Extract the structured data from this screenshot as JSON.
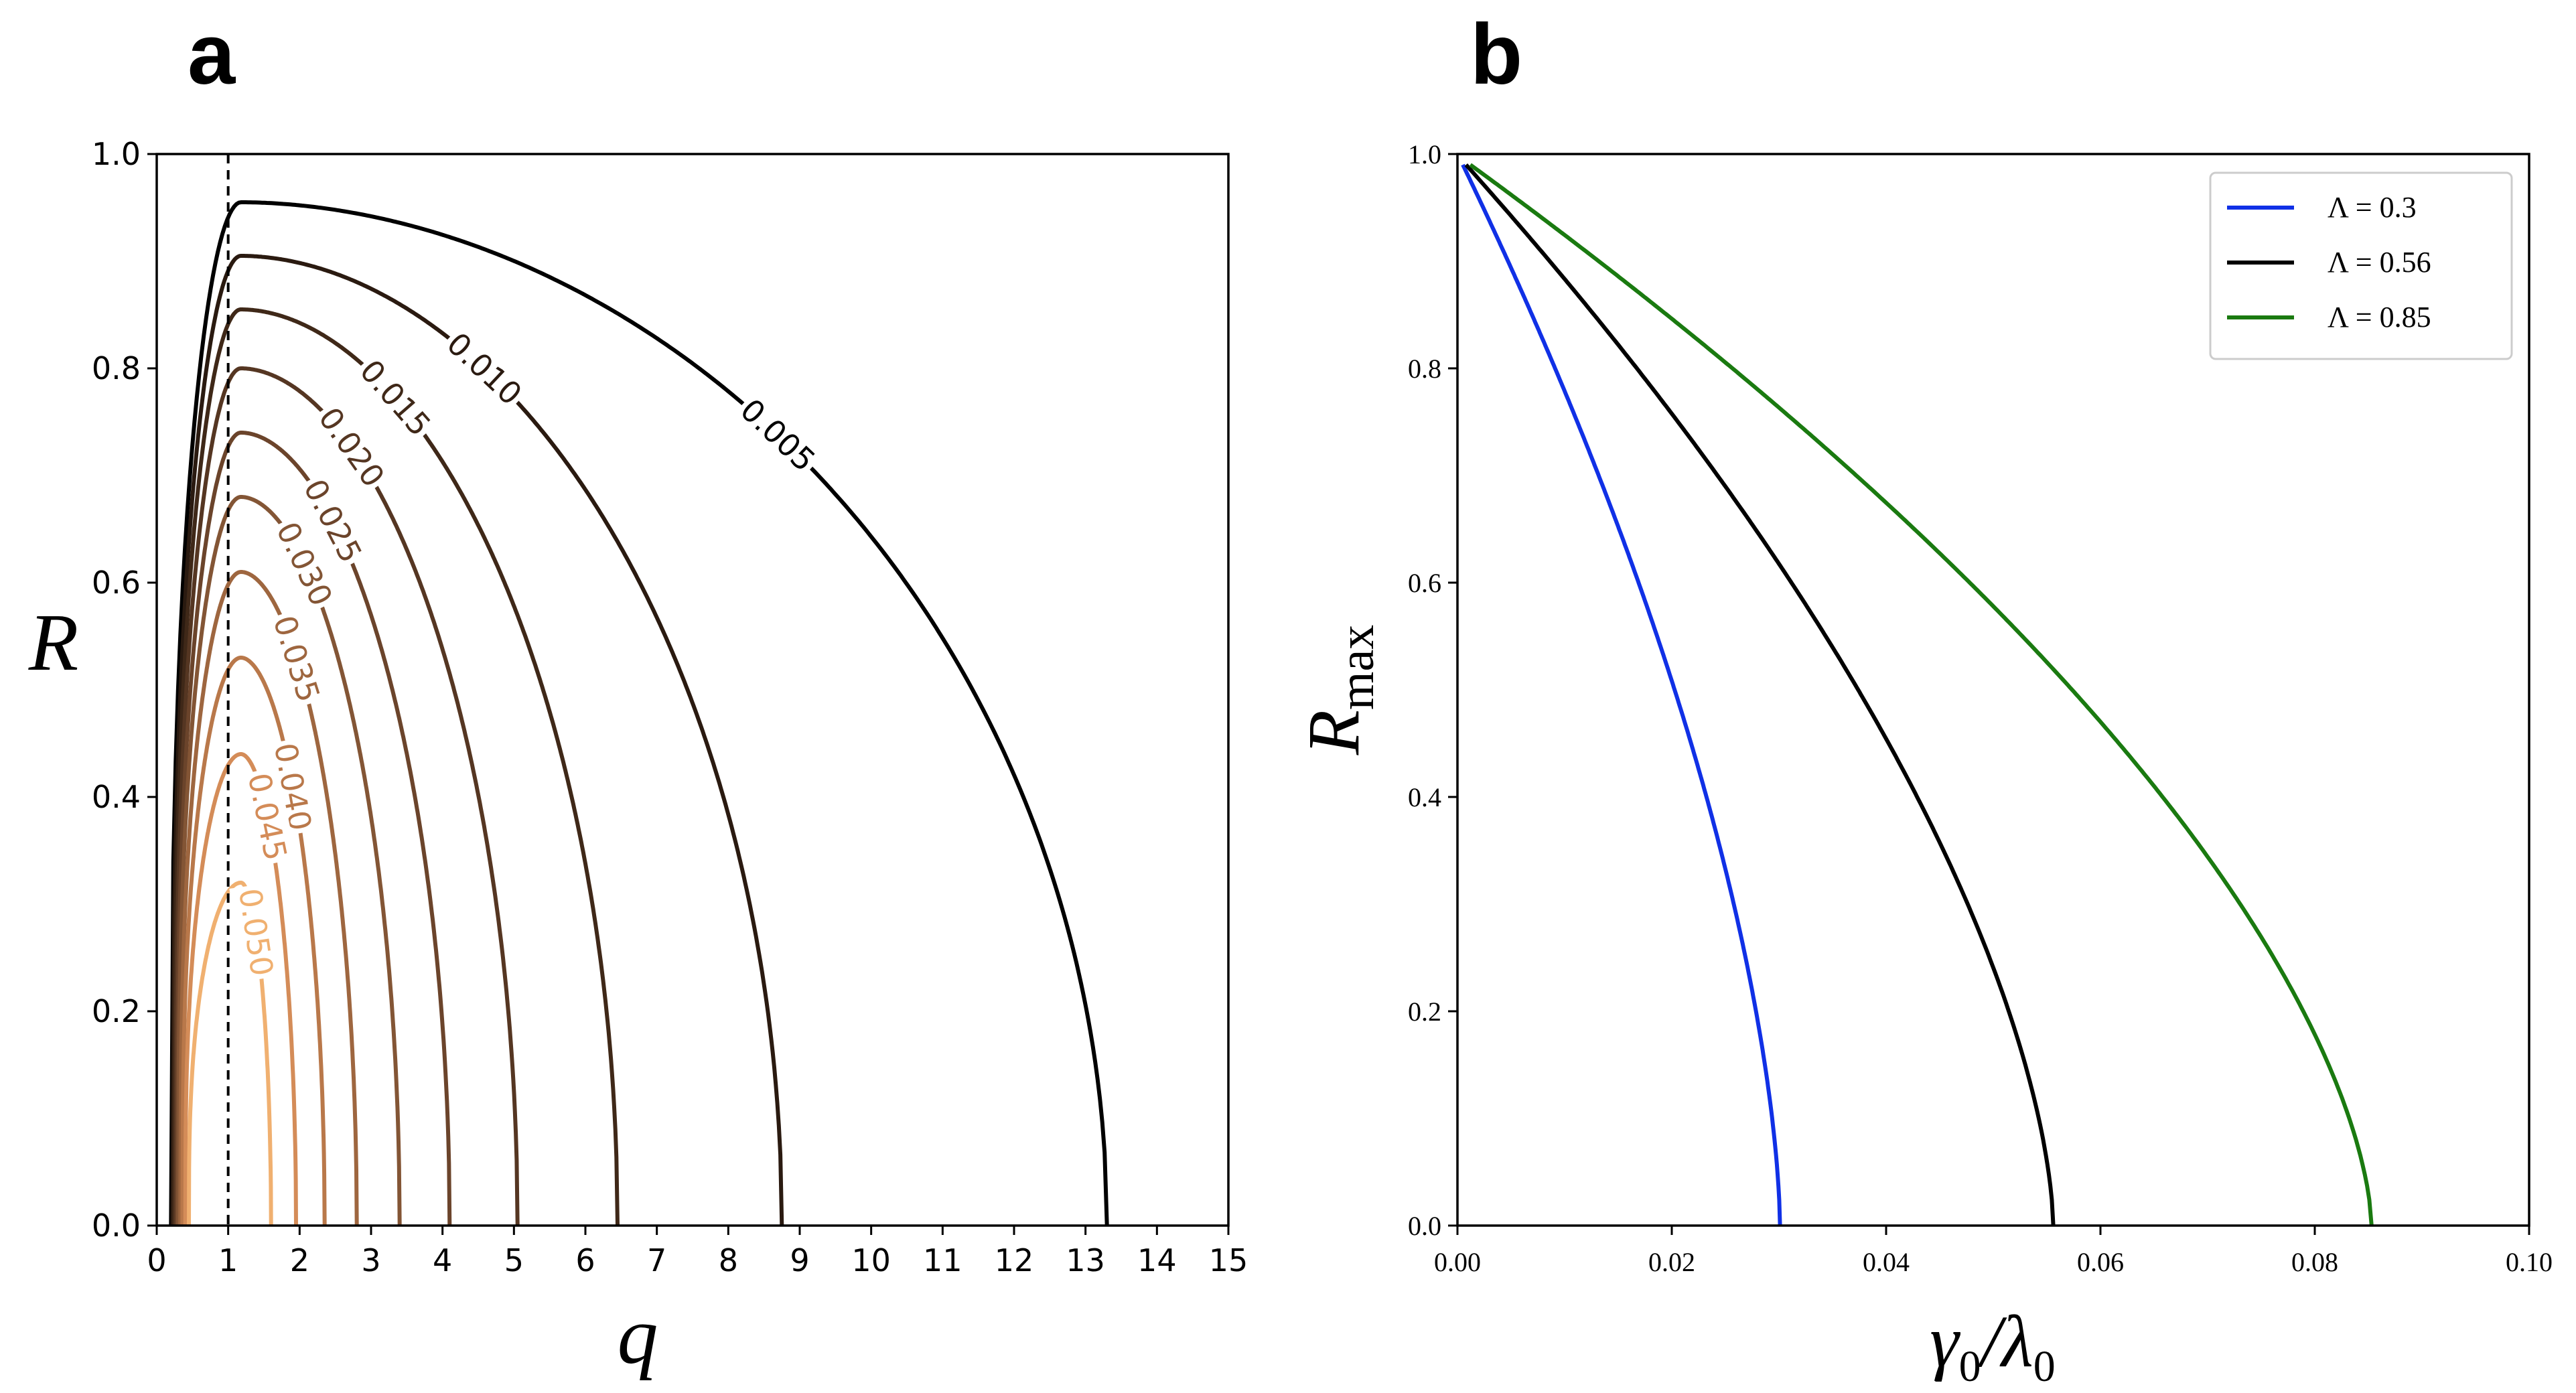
{
  "chart_data": [
    {
      "panel_label": "a",
      "type": "contour",
      "xlabel": "q",
      "ylabel": "R",
      "xlim": [
        0,
        15
      ],
      "ylim": [
        0,
        1.0
      ],
      "xticks": [
        "0",
        "1",
        "2",
        "3",
        "4",
        "5",
        "6",
        "7",
        "8",
        "9",
        "10",
        "11",
        "12",
        "13",
        "14",
        "15"
      ],
      "yticks": [
        "0.0",
        "0.2",
        "0.4",
        "0.6",
        "0.8",
        "1.0"
      ],
      "vline_q": 1,
      "levels": [
        {
          "label": "0.005",
          "q0": 0.2,
          "q1": 13.3,
          "rmax": 0.955,
          "color": "#000000"
        },
        {
          "label": "0.010",
          "q0": 0.22,
          "q1": 8.75,
          "rmax": 0.905,
          "color": "#2a1a10"
        },
        {
          "label": "0.015",
          "q0": 0.24,
          "q1": 6.45,
          "rmax": 0.855,
          "color": "#3f2818"
        },
        {
          "label": "0.020",
          "q0": 0.26,
          "q1": 5.05,
          "rmax": 0.8,
          "color": "#553622"
        },
        {
          "label": "0.025",
          "q0": 0.28,
          "q1": 4.1,
          "rmax": 0.74,
          "color": "#6b442b"
        },
        {
          "label": "0.030",
          "q0": 0.3,
          "q1": 3.4,
          "rmax": 0.68,
          "color": "#835535"
        },
        {
          "label": "0.035",
          "q0": 0.33,
          "q1": 2.8,
          "rmax": 0.61,
          "color": "#9e663f"
        },
        {
          "label": "0.040",
          "q0": 0.36,
          "q1": 2.35,
          "rmax": 0.53,
          "color": "#b9784a"
        },
        {
          "label": "0.045",
          "q0": 0.4,
          "q1": 1.95,
          "rmax": 0.44,
          "color": "#d48c58"
        },
        {
          "label": "0.050",
          "q0": 0.45,
          "q1": 1.6,
          "rmax": 0.32,
          "color": "#f0b070"
        }
      ]
    },
    {
      "panel_label": "b",
      "type": "line",
      "xlabel_main": "γ",
      "xlabel_sub": "0",
      "xlabel_slash": "/λ",
      "xlabel_sub2": "0",
      "ylabel_main": "R",
      "ylabel_sub": "max",
      "xlim": [
        0,
        0.1
      ],
      "ylim": [
        0,
        1.0
      ],
      "xticks": [
        "0.00",
        "0.02",
        "0.04",
        "0.06",
        "0.08",
        "0.10"
      ],
      "yticks": [
        "0.0",
        "0.2",
        "0.4",
        "0.6",
        "0.8",
        "1.0"
      ],
      "series": [
        {
          "name": "Λ = 0.3",
          "x0": 0.0005,
          "xc": 0.0301,
          "color": "#1030e6"
        },
        {
          "name": "Λ = 0.56",
          "x0": 0.0008,
          "xc": 0.0556,
          "color": "#000000"
        },
        {
          "name": "Λ = 0.85",
          "x0": 0.0012,
          "xc": 0.0853,
          "color": "#1a7a10"
        }
      ],
      "legend_position": "top-right"
    }
  ]
}
